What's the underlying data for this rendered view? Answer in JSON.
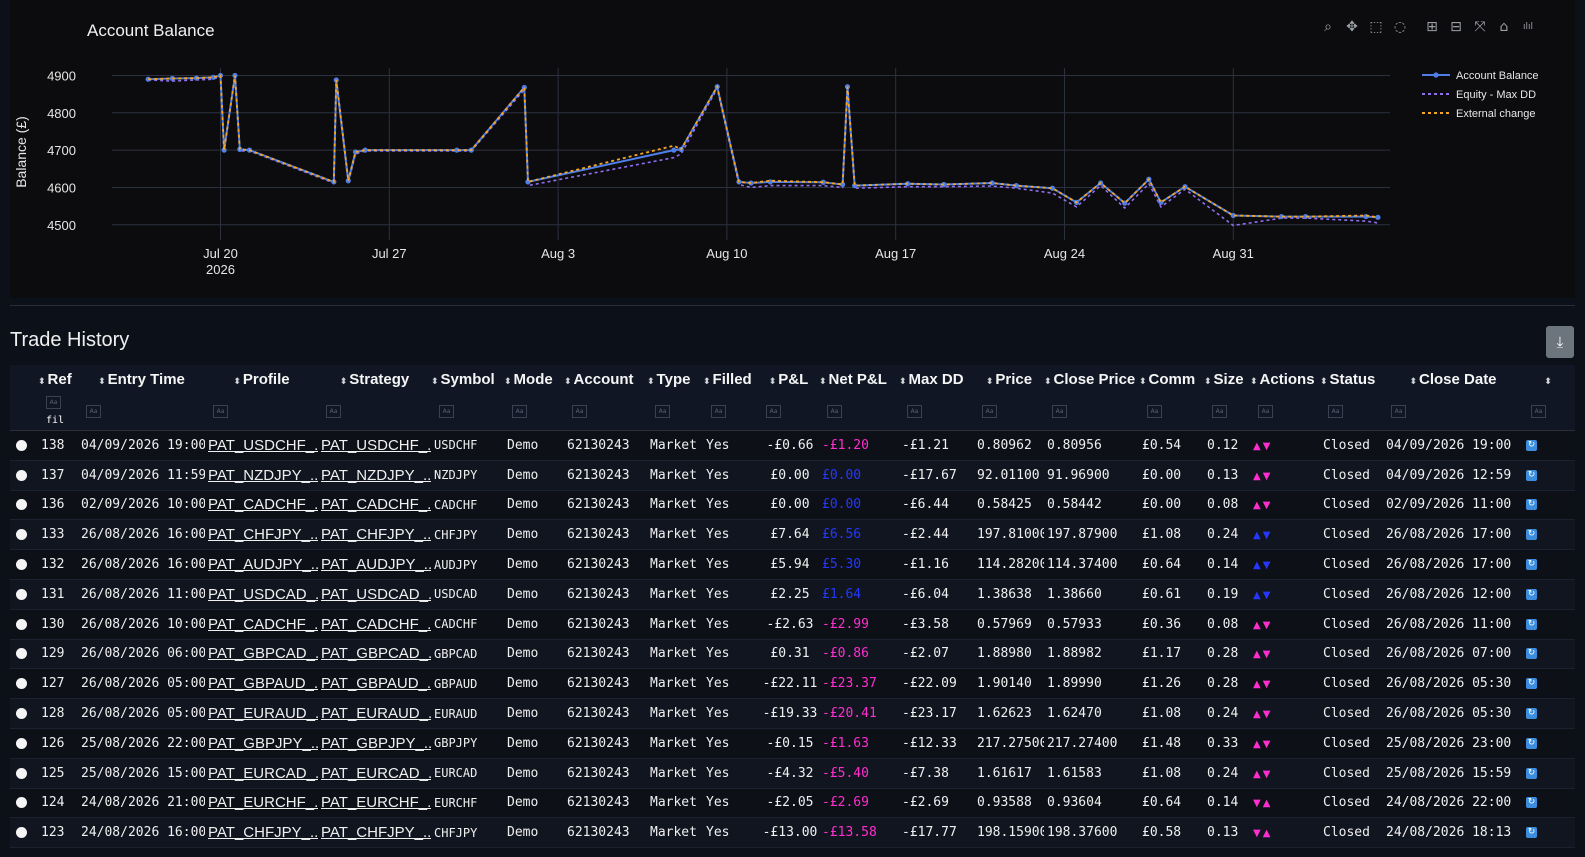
{
  "chart": {
    "title": "Account Balance",
    "legend_items": [
      "Account Balance",
      "Equity - Max DD",
      "External change"
    ],
    "modebar_icons": [
      "zoom-icon",
      "pan-icon",
      "box-select-icon",
      "lasso-icon",
      "zoom-in-icon",
      "zoom-out-icon",
      "autoscale-icon",
      "reset-axes-icon",
      "plotly-logo-icon"
    ]
  },
  "chart_data": {
    "type": "line",
    "ylabel": "Balance (£)",
    "xlabel": "",
    "ylim": [
      4470,
      4920
    ],
    "y_ticks": [
      4500,
      4600,
      4700,
      4800,
      4900
    ],
    "x_ticks": [
      {
        "label": "Jul 20",
        "sub": "2026",
        "day": 0
      },
      {
        "label": "Jul 27",
        "sub": "",
        "day": 7
      },
      {
        "label": "Aug 3",
        "sub": "",
        "day": 14
      },
      {
        "label": "Aug 10",
        "sub": "",
        "day": 21
      },
      {
        "label": "Aug 17",
        "sub": "",
        "day": 28
      },
      {
        "label": "Aug 24",
        "sub": "",
        "day": 35
      },
      {
        "label": "Aug 31",
        "sub": "",
        "day": 42
      }
    ],
    "xlim_day": [
      -4.5,
      48.5
    ],
    "grid": true,
    "legend": "top-right",
    "colors": {
      "balance": "#4f7fe6",
      "equity": "#8f6ff0",
      "external": "#f5a623"
    },
    "series": [
      {
        "name": "Account Balance",
        "x": [
          -3,
          -2,
          -1,
          -0.3,
          0,
          0.15,
          0.6,
          0.8,
          1.2,
          4.7,
          4.8,
          5.3,
          5.6,
          6,
          9.8,
          10.4,
          12.6,
          12.75,
          18.8,
          19.1,
          20.6,
          21.5,
          22,
          22.8,
          25,
          25.8,
          26,
          26.3,
          28.5,
          30,
          32,
          33,
          34.5,
          35.5,
          36.5,
          37.5,
          38.5,
          39,
          40,
          42,
          44,
          45,
          47.5,
          48
        ],
        "y": [
          4890,
          4892,
          4893,
          4895,
          4900,
          4700,
          4900,
          4702,
          4700,
          4615,
          4888,
          4618,
          4695,
          4700,
          4700,
          4700,
          4868,
          4615,
          4700,
          4702,
          4870,
          4615,
          4612,
          4615,
          4614,
          4608,
          4870,
          4605,
          4610,
          4608,
          4612,
          4605,
          4598,
          4560,
          4612,
          4558,
          4622,
          4560,
          4602,
          4525,
          4522,
          4522,
          4522,
          4520
        ]
      },
      {
        "name": "Equity - Max DD",
        "x": [
          -3,
          -2,
          -1,
          -0.3,
          0,
          0.15,
          0.6,
          0.8,
          1.2,
          4.7,
          4.8,
          5.3,
          5.6,
          6,
          9.8,
          10.4,
          12.6,
          12.75,
          18.8,
          19.1,
          20.6,
          21.5,
          22,
          22.8,
          25,
          25.8,
          26,
          26.3,
          28.5,
          30,
          32,
          33,
          34.5,
          35.5,
          36.5,
          37.5,
          38.5,
          39,
          40,
          42,
          44,
          45,
          47.5,
          48
        ],
        "y": [
          4888,
          4885,
          4888,
          4890,
          4898,
          4698,
          4898,
          4698,
          4698,
          4612,
          4880,
          4612,
          4690,
          4698,
          4698,
          4698,
          4862,
          4605,
          4680,
          4690,
          4865,
          4608,
          4600,
          4605,
          4605,
          4600,
          4862,
          4598,
          4602,
          4602,
          4604,
          4598,
          4585,
          4548,
          4605,
          4545,
          4610,
          4548,
          4595,
          4498,
          4518,
          4518,
          4510,
          4505
        ]
      },
      {
        "name": "External change",
        "x": [
          -3,
          -2,
          -1,
          -0.3,
          0,
          0.15,
          0.6,
          0.8,
          1.2,
          4.7,
          4.8,
          5.3,
          5.6,
          6,
          9.8,
          10.4,
          12.6,
          12.75,
          18.8,
          19.1,
          20.6,
          21.5,
          22,
          22.8,
          25,
          25.8,
          26,
          26.3,
          28.5,
          30,
          32,
          33,
          34.5,
          35.5,
          36.5,
          37.5,
          38.5,
          39,
          40,
          42,
          44,
          45,
          47.5,
          48
        ],
        "y": [
          4890,
          4892,
          4893,
          4895,
          4900,
          4700,
          4900,
          4702,
          4700,
          4615,
          4888,
          4618,
          4695,
          4700,
          4700,
          4700,
          4868,
          4615,
          4712,
          4702,
          4870,
          4615,
          4612,
          4618,
          4614,
          4608,
          4870,
          4605,
          4610,
          4608,
          4612,
          4605,
          4598,
          4560,
          4612,
          4558,
          4622,
          4560,
          4602,
          4525,
          4522,
          4522,
          4525,
          4520
        ]
      }
    ]
  },
  "trade_history": {
    "title": "Trade History",
    "filter_value": "fil",
    "columns": [
      "Ref",
      "Entry Time",
      "Profile",
      "Strategy",
      "Symbol",
      "Mode",
      "Account",
      "Type",
      "Filled",
      "P&L",
      "Net P&L",
      "Max DD",
      "Price",
      "Close Price",
      "Comm",
      "Size",
      "Actions",
      "Status",
      "Close Date"
    ],
    "rows": [
      {
        "ref": "138",
        "entry": "04/09/2026 19:00",
        "profile": "PAT_USDCHF_...",
        "strategy": "PAT_USDCHF_...",
        "symbol": "USDCHF",
        "mode": "Demo",
        "account": "62130243",
        "type": "Market",
        "filled": "Yes",
        "pnl": "-£0.66",
        "net": "-£1.20",
        "maxdd": "-£1.21",
        "price": "0.80962",
        "close_price": "0.80956",
        "comm": "£0.54",
        "size": "0.12",
        "status": "Closed",
        "close_date": "04/09/2026 19:00",
        "net_color": "#ff2ecf",
        "arrows": [
          "▲",
          "▼"
        ],
        "arrow_class": "mag"
      },
      {
        "ref": "137",
        "entry": "04/09/2026 11:59",
        "profile": "PAT_NZDJPY_...",
        "strategy": "PAT_NZDJPY_...",
        "symbol": "NZDJPY",
        "mode": "Demo",
        "account": "62130243",
        "type": "Market",
        "filled": "Yes",
        "pnl": "£0.00",
        "net": "£0.00",
        "maxdd": "-£17.67",
        "price": "92.01100",
        "close_price": "91.96900",
        "comm": "£0.00",
        "size": "0.13",
        "status": "Closed",
        "close_date": "04/09/2026 12:59",
        "net_color": "#2438ff",
        "arrows": [
          "▲",
          "▼"
        ],
        "arrow_class": "mag"
      },
      {
        "ref": "136",
        "entry": "02/09/2026 10:00",
        "profile": "PAT_CADCHF_...",
        "strategy": "PAT_CADCHF_...",
        "symbol": "CADCHF",
        "mode": "Demo",
        "account": "62130243",
        "type": "Market",
        "filled": "Yes",
        "pnl": "£0.00",
        "net": "£0.00",
        "maxdd": "-£6.44",
        "price": "0.58425",
        "close_price": "0.58442",
        "comm": "£0.00",
        "size": "0.08",
        "status": "Closed",
        "close_date": "02/09/2026 11:00",
        "net_color": "#2438ff",
        "arrows": [
          "▲",
          "▼"
        ],
        "arrow_class": "mag"
      },
      {
        "ref": "133",
        "entry": "26/08/2026 16:00",
        "profile": "PAT_CHFJPY_...",
        "strategy": "PAT_CHFJPY_...",
        "symbol": "CHFJPY",
        "mode": "Demo",
        "account": "62130243",
        "type": "Market",
        "filled": "Yes",
        "pnl": "£7.64",
        "net": "£6.56",
        "maxdd": "-£2.44",
        "price": "197.81000",
        "close_price": "197.87900",
        "comm": "£1.08",
        "size": "0.24",
        "status": "Closed",
        "close_date": "26/08/2026 17:00",
        "net_color": "#2438ff",
        "arrows": [
          "▲",
          "▼"
        ],
        "arrow_class": "blu"
      },
      {
        "ref": "132",
        "entry": "26/08/2026 16:00",
        "profile": "PAT_AUDJPY_...",
        "strategy": "PAT_AUDJPY_...",
        "symbol": "AUDJPY",
        "mode": "Demo",
        "account": "62130243",
        "type": "Market",
        "filled": "Yes",
        "pnl": "£5.94",
        "net": "£5.30",
        "maxdd": "-£1.16",
        "price": "114.28200",
        "close_price": "114.37400",
        "comm": "£0.64",
        "size": "0.14",
        "status": "Closed",
        "close_date": "26/08/2026 17:00",
        "net_color": "#2438ff",
        "arrows": [
          "▲",
          "▼"
        ],
        "arrow_class": "blu"
      },
      {
        "ref": "131",
        "entry": "26/08/2026 11:00",
        "profile": "PAT_USDCAD_...",
        "strategy": "PAT_USDCAD_...",
        "symbol": "USDCAD",
        "mode": "Demo",
        "account": "62130243",
        "type": "Market",
        "filled": "Yes",
        "pnl": "£2.25",
        "net": "£1.64",
        "maxdd": "-£6.04",
        "price": "1.38638",
        "close_price": "1.38660",
        "comm": "£0.61",
        "size": "0.19",
        "status": "Closed",
        "close_date": "26/08/2026 12:00",
        "net_color": "#2438ff",
        "arrows": [
          "▲",
          "▼"
        ],
        "arrow_class": "blu"
      },
      {
        "ref": "130",
        "entry": "26/08/2026 10:00",
        "profile": "PAT_CADCHF_...",
        "strategy": "PAT_CADCHF_...",
        "symbol": "CADCHF",
        "mode": "Demo",
        "account": "62130243",
        "type": "Market",
        "filled": "Yes",
        "pnl": "-£2.63",
        "net": "-£2.99",
        "maxdd": "-£3.58",
        "price": "0.57969",
        "close_price": "0.57933",
        "comm": "£0.36",
        "size": "0.08",
        "status": "Closed",
        "close_date": "26/08/2026 11:00",
        "net_color": "#ff2ecf",
        "arrows": [
          "▲",
          "▼"
        ],
        "arrow_class": "mag"
      },
      {
        "ref": "129",
        "entry": "26/08/2026 06:00",
        "profile": "PAT_GBPCAD_...",
        "strategy": "PAT_GBPCAD_...",
        "symbol": "GBPCAD",
        "mode": "Demo",
        "account": "62130243",
        "type": "Market",
        "filled": "Yes",
        "pnl": "£0.31",
        "net": "-£0.86",
        "maxdd": "-£2.07",
        "price": "1.88980",
        "close_price": "1.88982",
        "comm": "£1.17",
        "size": "0.28",
        "status": "Closed",
        "close_date": "26/08/2026 07:00",
        "net_color": "#ff2ecf",
        "arrows": [
          "▲",
          "▼"
        ],
        "arrow_class": "mag"
      },
      {
        "ref": "127",
        "entry": "26/08/2026 05:00",
        "profile": "PAT_GBPAUD_...",
        "strategy": "PAT_GBPAUD_...",
        "symbol": "GBPAUD",
        "mode": "Demo",
        "account": "62130243",
        "type": "Market",
        "filled": "Yes",
        "pnl": "-£22.11",
        "net": "-£23.37",
        "maxdd": "-£22.09",
        "price": "1.90140",
        "close_price": "1.89990",
        "comm": "£1.26",
        "size": "0.28",
        "status": "Closed",
        "close_date": "26/08/2026 05:30",
        "net_color": "#ff2ecf",
        "arrows": [
          "▲",
          "▼"
        ],
        "arrow_class": "mag"
      },
      {
        "ref": "128",
        "entry": "26/08/2026 05:00",
        "profile": "PAT_EURAUD_...",
        "strategy": "PAT_EURAUD_...",
        "symbol": "EURAUD",
        "mode": "Demo",
        "account": "62130243",
        "type": "Market",
        "filled": "Yes",
        "pnl": "-£19.33",
        "net": "-£20.41",
        "maxdd": "-£23.17",
        "price": "1.62623",
        "close_price": "1.62470",
        "comm": "£1.08",
        "size": "0.24",
        "status": "Closed",
        "close_date": "26/08/2026 05:30",
        "net_color": "#ff2ecf",
        "arrows": [
          "▲",
          "▼"
        ],
        "arrow_class": "mag"
      },
      {
        "ref": "126",
        "entry": "25/08/2026 22:00",
        "profile": "PAT_GBPJPY_...",
        "strategy": "PAT_GBPJPY_...",
        "symbol": "GBPJPY",
        "mode": "Demo",
        "account": "62130243",
        "type": "Market",
        "filled": "Yes",
        "pnl": "-£0.15",
        "net": "-£1.63",
        "maxdd": "-£12.33",
        "price": "217.27500",
        "close_price": "217.27400",
        "comm": "£1.48",
        "size": "0.33",
        "status": "Closed",
        "close_date": "25/08/2026 23:00",
        "net_color": "#ff2ecf",
        "arrows": [
          "▲",
          "▼"
        ],
        "arrow_class": "mag"
      },
      {
        "ref": "125",
        "entry": "25/08/2026 15:00",
        "profile": "PAT_EURCAD_...",
        "strategy": "PAT_EURCAD_...",
        "symbol": "EURCAD",
        "mode": "Demo",
        "account": "62130243",
        "type": "Market",
        "filled": "Yes",
        "pnl": "-£4.32",
        "net": "-£5.40",
        "maxdd": "-£7.38",
        "price": "1.61617",
        "close_price": "1.61583",
        "comm": "£1.08",
        "size": "0.24",
        "status": "Closed",
        "close_date": "25/08/2026 15:59",
        "net_color": "#ff2ecf",
        "arrows": [
          "▲",
          "▼"
        ],
        "arrow_class": "mag"
      },
      {
        "ref": "124",
        "entry": "24/08/2026 21:00",
        "profile": "PAT_EURCHF_...",
        "strategy": "PAT_EURCHF_...",
        "symbol": "EURCHF",
        "mode": "Demo",
        "account": "62130243",
        "type": "Market",
        "filled": "Yes",
        "pnl": "-£2.05",
        "net": "-£2.69",
        "maxdd": "-£2.69",
        "price": "0.93588",
        "close_price": "0.93604",
        "comm": "£0.64",
        "size": "0.14",
        "status": "Closed",
        "close_date": "24/08/2026 22:00",
        "net_color": "#ff2ecf",
        "arrows": [
          "▼",
          "▲"
        ],
        "arrow_class": "mag"
      },
      {
        "ref": "123",
        "entry": "24/08/2026 16:00",
        "profile": "PAT_CHFJPY_...",
        "strategy": "PAT_CHFJPY_...",
        "symbol": "CHFJPY",
        "mode": "Demo",
        "account": "62130243",
        "type": "Market",
        "filled": "Yes",
        "pnl": "-£13.00",
        "net": "-£13.58",
        "maxdd": "-£17.77",
        "price": "198.15900",
        "close_price": "198.37600",
        "comm": "£0.58",
        "size": "0.13",
        "status": "Closed",
        "close_date": "24/08/2026 18:13",
        "net_color": "#ff2ecf",
        "arrows": [
          "▼",
          "▲"
        ],
        "arrow_class": "mag"
      }
    ]
  }
}
